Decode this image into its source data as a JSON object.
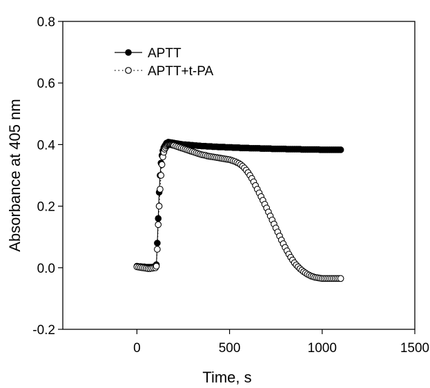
{
  "chart_data": {
    "type": "scatter",
    "title": "",
    "xlabel": "Time, s",
    "ylabel": "Absorbance at 405 nm",
    "xlim": [
      -400,
      1500
    ],
    "ylim": [
      -0.2,
      0.8
    ],
    "x_ticks": [
      0,
      500,
      1000,
      1500
    ],
    "x_tick_labels": [
      "0",
      "500",
      "1000",
      "1500"
    ],
    "y_ticks": [
      -0.2,
      0.0,
      0.2,
      0.4,
      0.6,
      0.8
    ],
    "y_tick_labels": [
      "-0.2",
      "0.0",
      "0.2",
      "0.4",
      "0.6",
      "0.8"
    ],
    "grid": false,
    "legend": "top-left",
    "series": [
      {
        "name": "APTT",
        "marker": "filled-circle",
        "line": "solid",
        "x": [
          0,
          10,
          20,
          30,
          40,
          50,
          60,
          70,
          80,
          90,
          100,
          105,
          110,
          115,
          120,
          125,
          130,
          135,
          140,
          145,
          150,
          155,
          160,
          165,
          170,
          175,
          180,
          185,
          190,
          195,
          200,
          210,
          220,
          230,
          240,
          250,
          260,
          270,
          280,
          290,
          300,
          310,
          320,
          330,
          340,
          350,
          360,
          370,
          380,
          390,
          400,
          410,
          420,
          430,
          440,
          450,
          460,
          470,
          480,
          490,
          500,
          510,
          520,
          530,
          540,
          550,
          560,
          570,
          580,
          590,
          600,
          610,
          620,
          630,
          640,
          650,
          660,
          670,
          680,
          690,
          700,
          710,
          720,
          730,
          740,
          750,
          760,
          770,
          780,
          790,
          800,
          810,
          820,
          830,
          840,
          850,
          860,
          870,
          880,
          890,
          900,
          910,
          920,
          930,
          940,
          950,
          960,
          970,
          980,
          990,
          1000,
          1010,
          1020,
          1030,
          1040,
          1050,
          1060,
          1070,
          1080,
          1090,
          1100
        ],
        "y": [
          0.005,
          0.004,
          0.004,
          0.003,
          0.003,
          0.002,
          0.002,
          0.002,
          0.002,
          0.003,
          0.006,
          0.01,
          0.08,
          0.16,
          0.245,
          0.3,
          0.34,
          0.365,
          0.38,
          0.39,
          0.395,
          0.4,
          0.405,
          0.405,
          0.408,
          0.407,
          0.407,
          0.406,
          0.406,
          0.405,
          0.405,
          0.404,
          0.403,
          0.402,
          0.401,
          0.4,
          0.4,
          0.399,
          0.399,
          0.398,
          0.398,
          0.397,
          0.397,
          0.396,
          0.396,
          0.395,
          0.395,
          0.395,
          0.394,
          0.394,
          0.394,
          0.393,
          0.393,
          0.393,
          0.392,
          0.392,
          0.392,
          0.392,
          0.391,
          0.391,
          0.391,
          0.391,
          0.39,
          0.39,
          0.39,
          0.39,
          0.389,
          0.389,
          0.389,
          0.389,
          0.389,
          0.388,
          0.388,
          0.388,
          0.388,
          0.388,
          0.388,
          0.387,
          0.387,
          0.387,
          0.387,
          0.387,
          0.387,
          0.386,
          0.386,
          0.386,
          0.386,
          0.386,
          0.386,
          0.386,
          0.386,
          0.385,
          0.385,
          0.385,
          0.385,
          0.385,
          0.385,
          0.385,
          0.385,
          0.384,
          0.384,
          0.384,
          0.384,
          0.384,
          0.384,
          0.384,
          0.384,
          0.384,
          0.384,
          0.383,
          0.383,
          0.383,
          0.383,
          0.383,
          0.383,
          0.383,
          0.383,
          0.383,
          0.383,
          0.383,
          0.383
        ]
      },
      {
        "name": "APTT+t-PA",
        "marker": "open-circle",
        "line": "dotted",
        "x": [
          0,
          10,
          20,
          30,
          40,
          50,
          60,
          70,
          80,
          90,
          100,
          105,
          110,
          115,
          120,
          125,
          130,
          135,
          140,
          145,
          150,
          155,
          160,
          165,
          170,
          175,
          180,
          185,
          190,
          195,
          200,
          210,
          220,
          230,
          240,
          250,
          260,
          270,
          280,
          290,
          300,
          310,
          320,
          330,
          340,
          350,
          360,
          370,
          380,
          390,
          400,
          410,
          420,
          430,
          440,
          450,
          460,
          470,
          480,
          490,
          500,
          510,
          520,
          530,
          540,
          550,
          560,
          570,
          580,
          590,
          600,
          610,
          620,
          630,
          640,
          650,
          660,
          670,
          680,
          690,
          700,
          710,
          720,
          730,
          740,
          750,
          760,
          770,
          780,
          790,
          800,
          810,
          820,
          830,
          840,
          850,
          860,
          870,
          880,
          890,
          900,
          910,
          920,
          930,
          940,
          950,
          960,
          970,
          980,
          990,
          1000,
          1010,
          1020,
          1030,
          1040,
          1050,
          1060,
          1070,
          1080,
          1090,
          1100
        ],
        "y": [
          0.003,
          0.002,
          0.001,
          0.0,
          -0.001,
          -0.002,
          -0.003,
          -0.003,
          -0.002,
          -0.001,
          0.0,
          0.005,
          0.06,
          0.14,
          0.2,
          0.255,
          0.3,
          0.335,
          0.36,
          0.375,
          0.385,
          0.39,
          0.395,
          0.398,
          0.4,
          0.4,
          0.4,
          0.4,
          0.399,
          0.398,
          0.397,
          0.395,
          0.393,
          0.391,
          0.389,
          0.387,
          0.385,
          0.383,
          0.381,
          0.379,
          0.377,
          0.375,
          0.373,
          0.371,
          0.369,
          0.367,
          0.366,
          0.365,
          0.363,
          0.362,
          0.361,
          0.36,
          0.359,
          0.358,
          0.357,
          0.356,
          0.355,
          0.354,
          0.353,
          0.352,
          0.351,
          0.349,
          0.347,
          0.345,
          0.342,
          0.339,
          0.335,
          0.33,
          0.324,
          0.317,
          0.309,
          0.3,
          0.29,
          0.279,
          0.267,
          0.255,
          0.243,
          0.231,
          0.219,
          0.206,
          0.194,
          0.181,
          0.168,
          0.155,
          0.142,
          0.129,
          0.116,
          0.103,
          0.09,
          0.078,
          0.066,
          0.055,
          0.044,
          0.034,
          0.025,
          0.016,
          0.009,
          0.003,
          -0.003,
          -0.008,
          -0.013,
          -0.017,
          -0.021,
          -0.024,
          -0.027,
          -0.029,
          -0.031,
          -0.032,
          -0.033,
          -0.034,
          -0.035,
          -0.035,
          -0.035,
          -0.035,
          -0.035,
          -0.035,
          -0.035,
          -0.035,
          -0.035,
          -0.035,
          -0.035
        ]
      }
    ]
  }
}
